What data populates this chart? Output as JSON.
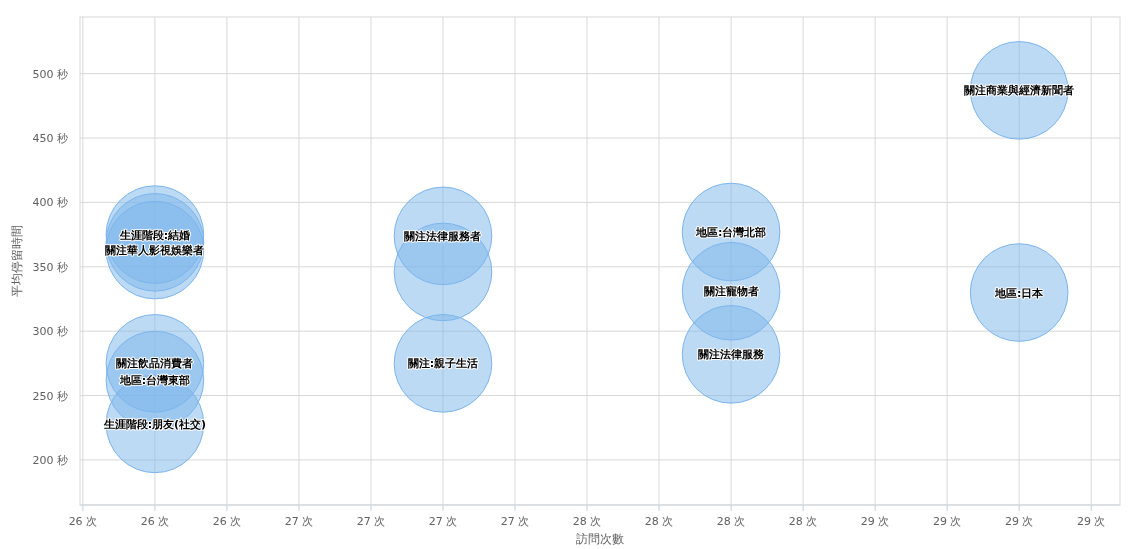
{
  "chart_data": {
    "type": "bubble",
    "xlabel": "訪問次數",
    "ylabel": "平均停留時間",
    "x": [
      26,
      26,
      26,
      26,
      26,
      26,
      27,
      27,
      27,
      28,
      28,
      28,
      29,
      29
    ],
    "series": [
      {
        "color": "#7cb5ec",
        "values": [
          375,
          369,
          363,
          275,
          262,
          228,
          374,
          346,
          275,
          377,
          331,
          282,
          487,
          330
        ],
        "sizes": [
          1,
          1,
          1,
          1,
          1,
          1,
          1,
          1,
          1,
          1,
          1,
          1,
          1,
          1
        ]
      }
    ],
    "xlim": [
      25.74,
      29.35
    ],
    "ylim": [
      165,
      544
    ],
    "xticks": [
      {
        "value": 25.75,
        "label": "26 次"
      },
      {
        "value": 26,
        "label": "26 次"
      },
      {
        "value": 26.25,
        "label": "26 次"
      },
      {
        "value": 26.5,
        "label": "27 次"
      },
      {
        "value": 26.75,
        "label": "27 次"
      },
      {
        "value": 27,
        "label": "27 次"
      },
      {
        "value": 27.25,
        "label": "27 次"
      },
      {
        "value": 27.5,
        "label": "28 次"
      },
      {
        "value": 27.75,
        "label": "28 次"
      },
      {
        "value": 28,
        "label": "28 次"
      },
      {
        "value": 28.25,
        "label": "28 次"
      },
      {
        "value": 28.5,
        "label": "29 次"
      },
      {
        "value": 28.75,
        "label": "29 次"
      },
      {
        "value": 29,
        "label": "29 次"
      },
      {
        "value": 29.25,
        "label": "29 次"
      }
    ],
    "yticks": [
      {
        "value": 200,
        "label": "200 秒"
      },
      {
        "value": 250,
        "label": "250 秒"
      },
      {
        "value": 300,
        "label": "300 秒"
      },
      {
        "value": 350,
        "label": "350 秒"
      },
      {
        "value": 400,
        "label": "400 秒"
      },
      {
        "value": 450,
        "label": "450 秒"
      },
      {
        "value": 500,
        "label": "500 秒"
      }
    ],
    "grid": true,
    "annotations": [
      {
        "text": "生涯階段:結婚",
        "x": 26,
        "y": 375
      },
      {
        "text": "關注華人影視娛樂者",
        "x": 26,
        "y": 363
      },
      {
        "text": "關注飲品消費者",
        "x": 26,
        "y": 275
      },
      {
        "text": "地區:台灣東部",
        "x": 26,
        "y": 262
      },
      {
        "text": "生涯階段:朋友(社交)",
        "x": 26,
        "y": 228
      },
      {
        "text": "關注法律服務者",
        "x": 27,
        "y": 374
      },
      {
        "text": "關注:親子生活",
        "x": 27,
        "y": 275
      },
      {
        "text": "地區:台灣北部",
        "x": 28,
        "y": 377
      },
      {
        "text": "關注寵物者",
        "x": 28,
        "y": 331
      },
      {
        "text": "關注法律服務",
        "x": 28,
        "y": 282
      },
      {
        "text": "關注商業與經濟新聞者",
        "x": 29,
        "y": 487
      },
      {
        "text": "地區:日本",
        "x": 29,
        "y": 330
      }
    ]
  }
}
